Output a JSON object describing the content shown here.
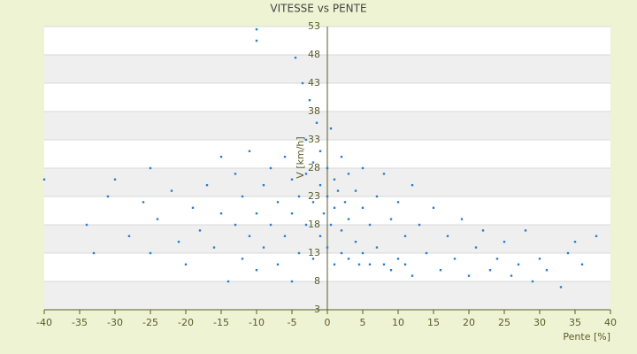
{
  "chart_data": {
    "type": "scatter",
    "title": "VITESSE vs PENTE",
    "x_label": "Pente [%]",
    "y_label": "V [km/h]",
    "xlim": [
      -40,
      40
    ],
    "xticks": [
      -40,
      -35,
      -30,
      -25,
      -20,
      -15,
      -10,
      -5,
      0,
      5,
      10,
      15,
      20,
      25,
      30,
      35,
      40
    ],
    "ylim": [
      3,
      53
    ],
    "yticks": [
      3,
      8,
      13,
      18,
      23,
      28,
      33,
      38,
      43,
      48,
      53
    ],
    "grid": true,
    "series": [
      {
        "name": "Points",
        "color": "#2e7fcb",
        "x": [
          -40,
          -34,
          -33,
          -31,
          -30,
          -28,
          -26,
          -25,
          -25,
          -24,
          -22,
          -21,
          -20,
          -19,
          -18,
          -17,
          -16,
          -15,
          -15,
          -14,
          -13,
          -13,
          -12,
          -12,
          -11,
          -11,
          -10,
          -10,
          -10,
          -10,
          -9,
          -9,
          -8,
          -8,
          -7,
          -7,
          -6,
          -6,
          -5,
          -5,
          -5,
          -4.5,
          -4,
          -4,
          -3.5,
          -3,
          -3,
          -3,
          -2.5,
          -2,
          -2,
          -2,
          -1.5,
          -1,
          -1,
          -1,
          -0.5,
          0,
          0,
          0,
          0.5,
          0.5,
          1,
          1,
          1,
          1.5,
          2,
          2,
          2,
          2.5,
          3,
          3,
          3,
          4,
          4,
          4.5,
          5,
          5,
          5,
          6,
          6,
          7,
          7,
          8,
          8,
          9,
          9,
          10,
          10,
          11,
          11,
          12,
          12,
          13,
          14,
          15,
          16,
          17,
          18,
          19,
          20,
          21,
          22,
          23,
          24,
          25,
          26,
          27,
          28,
          29,
          30,
          31,
          33,
          34,
          35,
          36,
          38
        ],
        "values": [
          26,
          18,
          13,
          23,
          26,
          16,
          22,
          28,
          13,
          19,
          24,
          15,
          11,
          21,
          17,
          25,
          14,
          30,
          20,
          8,
          18,
          27,
          12,
          23,
          16,
          31,
          52.5,
          50.5,
          20,
          10,
          25,
          14,
          28,
          18,
          22,
          11,
          30,
          16,
          26,
          8,
          20,
          47.5,
          23,
          13,
          43,
          33,
          18,
          27,
          40,
          22,
          29,
          12,
          36,
          25,
          31,
          16,
          20,
          28,
          23,
          14,
          35,
          18,
          26,
          21,
          11,
          24,
          30,
          17,
          13,
          22,
          27,
          19,
          12,
          24,
          15,
          11,
          21,
          28,
          13,
          18,
          11,
          23,
          14,
          27,
          11,
          19,
          10,
          12,
          22,
          16,
          11,
          25,
          9,
          18,
          13,
          21,
          10,
          16,
          12,
          19,
          9,
          14,
          17,
          10,
          12,
          15,
          9,
          11,
          17,
          8,
          12,
          10,
          7,
          13,
          15,
          11,
          16
        ]
      }
    ]
  }
}
